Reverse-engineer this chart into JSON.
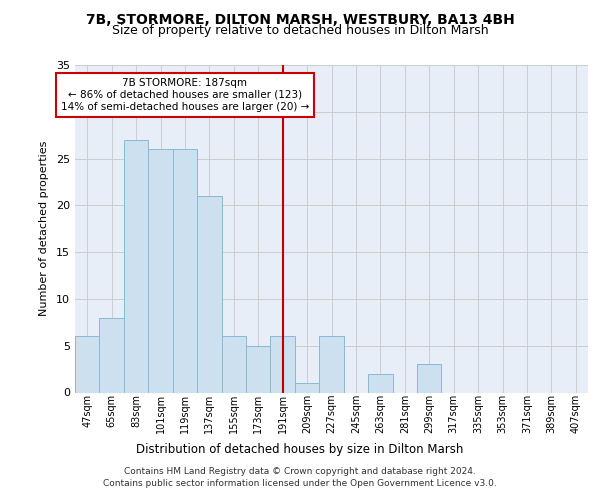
{
  "title_line1": "7B, STORMORE, DILTON MARSH, WESTBURY, BA13 4BH",
  "title_line2": "Size of property relative to detached houses in Dilton Marsh",
  "xlabel": "Distribution of detached houses by size in Dilton Marsh",
  "ylabel": "Number of detached properties",
  "footer_line1": "Contains HM Land Registry data © Crown copyright and database right 2024.",
  "footer_line2": "Contains public sector information licensed under the Open Government Licence v3.0.",
  "bar_labels": [
    "47sqm",
    "65sqm",
    "83sqm",
    "101sqm",
    "119sqm",
    "137sqm",
    "155sqm",
    "173sqm",
    "191sqm",
    "209sqm",
    "227sqm",
    "245sqm",
    "263sqm",
    "281sqm",
    "299sqm",
    "317sqm",
    "335sqm",
    "353sqm",
    "371sqm",
    "389sqm",
    "407sqm"
  ],
  "bar_values": [
    6,
    8,
    27,
    26,
    26,
    21,
    6,
    5,
    6,
    1,
    6,
    0,
    2,
    0,
    3,
    0,
    0,
    0,
    0,
    0,
    0
  ],
  "bar_color": "#cce0f0",
  "bar_edgecolor": "#8ab8d8",
  "vline_color": "#bb0000",
  "vline_x": 8,
  "ylim": [
    0,
    35
  ],
  "yticks": [
    0,
    5,
    10,
    15,
    20,
    25,
    30,
    35
  ],
  "grid_color": "#cccccc",
  "background_color": "#e8eef8",
  "annotation_line1": "7B STORMORE: 187sqm",
  "annotation_line2": "← 86% of detached houses are smaller (123)",
  "annotation_line3": "14% of semi-detached houses are larger (20) →",
  "annotation_box_edgecolor": "#cc0000",
  "annotation_box_facecolor": "#ffffff",
  "title_fontsize": 10,
  "subtitle_fontsize": 9,
  "footer_fontsize": 6.5
}
